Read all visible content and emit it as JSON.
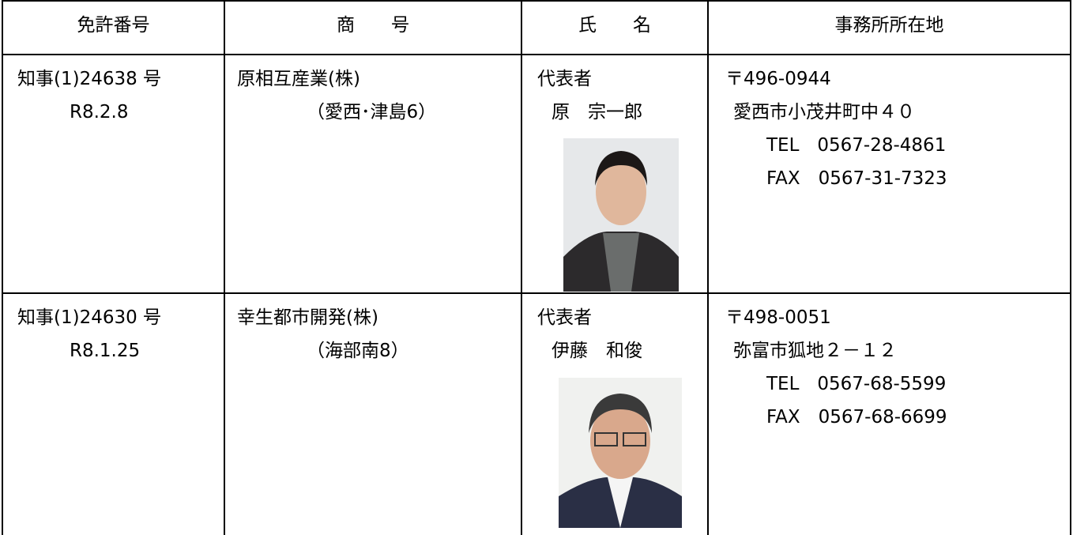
{
  "table": {
    "headers": [
      "免許番号",
      "商　　号",
      "氏　　名",
      "事務所所在地"
    ],
    "rows": [
      {
        "license": [
          "知事(1)24638 号",
          "R8.2.8"
        ],
        "company": [
          "原相互産業(株)",
          "（愛西･津島6）"
        ],
        "name": [
          "代表者",
          "原　宗一郎"
        ],
        "address": [
          "〒496-0944",
          "愛西市小茂井町中４０",
          "TEL　0567-28-4861",
          "FAX　0567-31-7323"
        ]
      },
      {
        "license": [
          "知事(1)24630 号",
          "R8.1.25"
        ],
        "company": [
          "幸生都市開発(株)",
          "（海部南8）"
        ],
        "name": [
          "代表者",
          "伊藤　和俊"
        ],
        "address": [
          "〒498-0051",
          "弥富市狐地２－１２",
          "TEL　0567-68-5599",
          "FAX　0567-68-6699"
        ]
      }
    ]
  }
}
